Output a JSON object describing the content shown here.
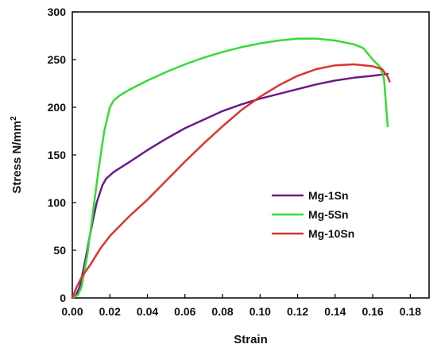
{
  "chart_data": {
    "type": "line",
    "xlabel": "Strain",
    "ylabel": "Stress N/mm",
    "ylabel_sup": "2",
    "xlim": [
      0,
      0.19
    ],
    "ylim": [
      0,
      300
    ],
    "x_ticks": [
      "0.00",
      "0.02",
      "0.04",
      "0.06",
      "0.08",
      "0.10",
      "0.12",
      "0.14",
      "0.16",
      "0.18"
    ],
    "x_tick_values": [
      0,
      0.02,
      0.04,
      0.06,
      0.08,
      0.1,
      0.12,
      0.14,
      0.16,
      0.18
    ],
    "y_ticks": [
      "0",
      "50",
      "100",
      "150",
      "200",
      "250",
      "300"
    ],
    "y_tick_values": [
      0,
      50,
      100,
      150,
      200,
      250,
      300
    ],
    "grid": false,
    "legend_position": "center-right",
    "series": [
      {
        "name": "Mg-1Sn",
        "color": "#6a1b8a",
        "points": [
          [
            0,
            0
          ],
          [
            0.002,
            3
          ],
          [
            0.004,
            12
          ],
          [
            0.007,
            40
          ],
          [
            0.01,
            72
          ],
          [
            0.013,
            100
          ],
          [
            0.016,
            118
          ],
          [
            0.018,
            125
          ],
          [
            0.022,
            132
          ],
          [
            0.03,
            142
          ],
          [
            0.04,
            155
          ],
          [
            0.05,
            167
          ],
          [
            0.06,
            178
          ],
          [
            0.07,
            187
          ],
          [
            0.08,
            196
          ],
          [
            0.09,
            203
          ],
          [
            0.1,
            209
          ],
          [
            0.11,
            214
          ],
          [
            0.12,
            219
          ],
          [
            0.13,
            224
          ],
          [
            0.14,
            228
          ],
          [
            0.15,
            231
          ],
          [
            0.16,
            233
          ],
          [
            0.168,
            235
          ]
        ]
      },
      {
        "name": "Mg-5Sn",
        "color": "#33dd33",
        "points": [
          [
            0,
            0
          ],
          [
            0.003,
            3
          ],
          [
            0.005,
            12
          ],
          [
            0.008,
            45
          ],
          [
            0.011,
            90
          ],
          [
            0.014,
            135
          ],
          [
            0.017,
            175
          ],
          [
            0.02,
            200
          ],
          [
            0.022,
            207
          ],
          [
            0.025,
            212
          ],
          [
            0.03,
            218
          ],
          [
            0.04,
            228
          ],
          [
            0.05,
            237
          ],
          [
            0.06,
            245
          ],
          [
            0.07,
            252
          ],
          [
            0.08,
            258
          ],
          [
            0.09,
            263
          ],
          [
            0.1,
            267
          ],
          [
            0.11,
            270
          ],
          [
            0.12,
            272
          ],
          [
            0.13,
            272
          ],
          [
            0.14,
            270
          ],
          [
            0.15,
            266
          ],
          [
            0.155,
            262
          ],
          [
            0.16,
            250
          ],
          [
            0.164,
            242
          ],
          [
            0.166,
            230
          ],
          [
            0.167,
            205
          ],
          [
            0.168,
            180
          ]
        ]
      },
      {
        "name": "Mg-10Sn",
        "color": "#dd3333",
        "points": [
          [
            0,
            0
          ],
          [
            0.002,
            10
          ],
          [
            0.005,
            22
          ],
          [
            0.01,
            36
          ],
          [
            0.015,
            52
          ],
          [
            0.02,
            65
          ],
          [
            0.03,
            85
          ],
          [
            0.04,
            103
          ],
          [
            0.05,
            123
          ],
          [
            0.06,
            143
          ],
          [
            0.07,
            162
          ],
          [
            0.08,
            180
          ],
          [
            0.09,
            197
          ],
          [
            0.1,
            211
          ],
          [
            0.11,
            223
          ],
          [
            0.12,
            233
          ],
          [
            0.13,
            240
          ],
          [
            0.14,
            244
          ],
          [
            0.15,
            245
          ],
          [
            0.16,
            243
          ],
          [
            0.165,
            240
          ],
          [
            0.168,
            232
          ],
          [
            0.169,
            227
          ]
        ]
      }
    ]
  }
}
